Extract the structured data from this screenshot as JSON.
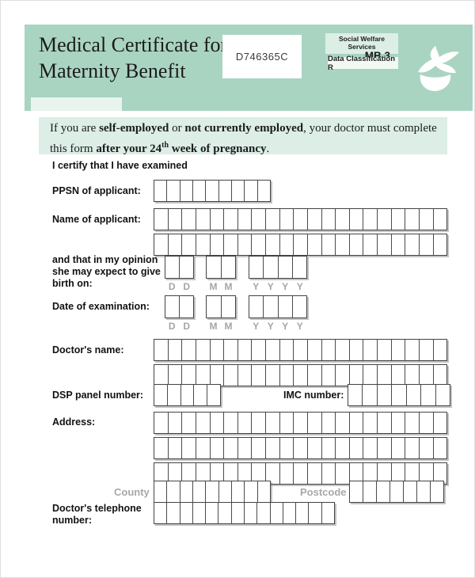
{
  "header": {
    "title_line1": "Medical Certificate for",
    "title_line2": "Maternity Benefit",
    "code": "D746365C",
    "agency": "Social Welfare Services",
    "form_number": "MB 3",
    "classification": "Data Classification R",
    "logo": "bird-leaf-logo"
  },
  "colors": {
    "header_green": "#a9d4c2",
    "substrip_light": "#e9f4ee",
    "notice_bg": "#dceee6",
    "badge_bg": "#dceee5",
    "box_border": "#434343",
    "hint_gray": "#a5a5a5"
  },
  "notice": {
    "l1_a": "If you are ",
    "l1_b": "self-employed",
    "l1_c": " or ",
    "l1_d": "not currently employed",
    "l1_e": ", your doctor must complete",
    "l2_a": "this form ",
    "l2_b": "after your 24",
    "l2_sup": "th",
    "l2_c": " week of pregnancy",
    "l2_d": "."
  },
  "form": {
    "certify": "I certify that I have examined",
    "ppsn": {
      "label": "PPSN of applicant:",
      "boxes": 9
    },
    "name": {
      "label": "Name of applicant:",
      "boxes": 21
    },
    "birth": {
      "label1": "and that in my opinion",
      "label2": "she may expect to give",
      "label3": "birth on:",
      "day_boxes": 2,
      "month_boxes": 2,
      "year_boxes": 4
    },
    "exam": {
      "label": "Date of examination:",
      "day_boxes": 2,
      "month_boxes": 2,
      "year_boxes": 4
    },
    "hints": {
      "d": [
        "D",
        "D"
      ],
      "m": [
        "M",
        "M"
      ],
      "y": [
        "Y",
        "Y",
        "Y",
        "Y"
      ]
    },
    "doctor_name": {
      "label": "Doctor's name:",
      "boxes": 21
    },
    "dsp": {
      "label": "DSP panel number:",
      "boxes": 5
    },
    "imc": {
      "label": "IMC number:",
      "boxes": 7
    },
    "address": {
      "label": "Address:",
      "boxes": 21
    },
    "county": {
      "label": "County",
      "boxes": 9
    },
    "postcode": {
      "label": "Postcode",
      "boxes": 7
    },
    "phone": {
      "label1": "Doctor's telephone",
      "label2": "number:",
      "boxes": 14
    }
  }
}
